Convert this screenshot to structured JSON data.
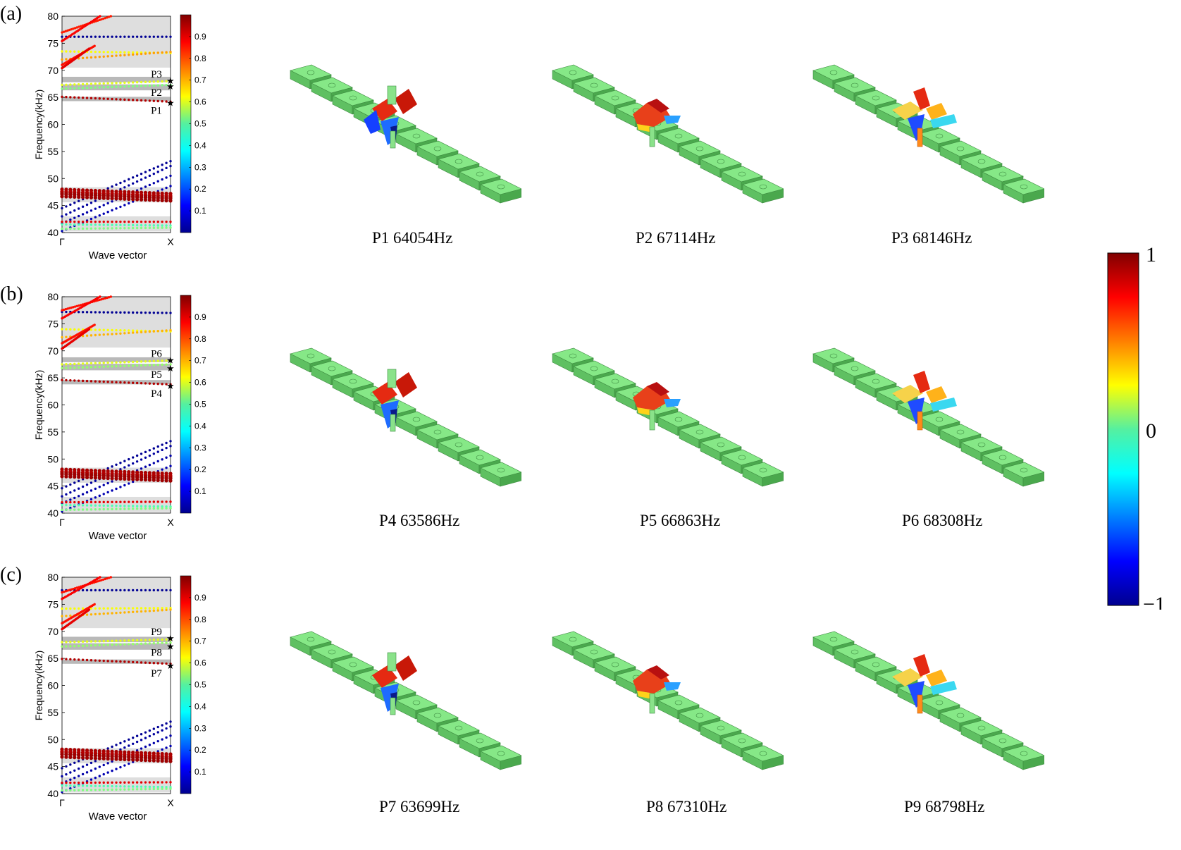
{
  "panels": [
    {
      "label": "(a)",
      "chart_data": {
        "type": "scatter",
        "ylabel": "Frequency(kHz)",
        "xlabel": "Wave vector",
        "xticklabels": [
          "Γ",
          "X"
        ],
        "ylim": [
          40,
          80
        ],
        "yticks": [
          40,
          45,
          50,
          55,
          60,
          65,
          70,
          75,
          80
        ],
        "colorbar": {
          "range": [
            0,
            1
          ],
          "ticks": [
            0.1,
            0.2,
            0.3,
            0.4,
            0.5,
            0.6,
            0.7,
            0.8,
            0.9
          ],
          "colormap": "jet"
        },
        "shaded_bands": [
          [
            45.6,
            48.4
          ],
          [
            40.2,
            43.0
          ],
          [
            64.3,
            65.1
          ],
          [
            66.3,
            67.4
          ],
          [
            67.8,
            68.8
          ],
          [
            70.5,
            80
          ]
        ],
        "series": [
          {
            "y0": 76.2,
            "y1": 76.2,
            "c": 0.02
          },
          {
            "y0": 77.0,
            "y1": 80.0,
            "c": 0.85,
            "xend": 0.45
          },
          {
            "y0": 75.4,
            "y1": 80.0,
            "c": 0.88,
            "xend": 0.35
          },
          {
            "y0": 73.5,
            "y1": 73.2,
            "c": 0.62
          },
          {
            "y0": 72.0,
            "y1": 73.4,
            "c": 0.72
          },
          {
            "y0": 71.0,
            "y1": 74.5,
            "c": 0.86,
            "xend": 0.3
          },
          {
            "y0": 70.4,
            "y1": 74.0,
            "c": 0.9,
            "xend": 0.25
          },
          {
            "y0": 67.3,
            "y1": 68.0,
            "c": 0.6
          },
          {
            "y0": 66.6,
            "y1": 67.3,
            "c": 0.5
          },
          {
            "y0": 65.1,
            "y1": 64.2,
            "c": 0.95
          },
          {
            "y0": 44.5,
            "y1": 53.2,
            "c": 0.02
          },
          {
            "y0": 43.0,
            "y1": 52.3,
            "c": 0.03
          },
          {
            "y0": 41.7,
            "y1": 50.5,
            "c": 0.04
          },
          {
            "y0": 40.3,
            "y1": 48.6,
            "c": 0.05
          },
          {
            "y0": 48.0,
            "y1": 47.2,
            "c": 0.96
          },
          {
            "y0": 47.6,
            "y1": 46.8,
            "c": 0.95
          },
          {
            "y0": 47.2,
            "y1": 46.4,
            "c": 0.97
          },
          {
            "y0": 42.0,
            "y1": 42.0,
            "c": 0.9
          },
          {
            "y0": 41.5,
            "y1": 41.3,
            "c": 0.45
          },
          {
            "y0": 40.7,
            "y1": 40.9,
            "c": 0.5
          }
        ],
        "markers": [
          {
            "label": "P1",
            "y": 64.054
          },
          {
            "label": "P2",
            "y": 67.114
          },
          {
            "label": "P3",
            "y": 68.146
          }
        ]
      },
      "modes": [
        {
          "caption": "P1 64054Hz",
          "style": 1
        },
        {
          "caption": "P2 67114Hz",
          "style": 2
        },
        {
          "caption": "P3 68146Hz",
          "style": 3
        }
      ]
    },
    {
      "label": "(b)",
      "chart_data": {
        "type": "scatter",
        "ylabel": "Frequency(kHz)",
        "xlabel": "Wave vector",
        "xticklabels": [
          "Γ",
          "X"
        ],
        "ylim": [
          40,
          80
        ],
        "yticks": [
          40,
          45,
          50,
          55,
          60,
          65,
          70,
          75,
          80
        ],
        "colorbar": {
          "range": [
            0,
            1
          ],
          "ticks": [
            0.1,
            0.2,
            0.3,
            0.4,
            0.5,
            0.6,
            0.7,
            0.8,
            0.9
          ],
          "colormap": "jet"
        },
        "shaded_bands": [
          [
            45.6,
            48.4
          ],
          [
            40.2,
            43.0
          ],
          [
            63.8,
            64.6
          ],
          [
            66.4,
            67.6
          ],
          [
            67.9,
            68.8
          ],
          [
            70.6,
            80
          ]
        ],
        "series": [
          {
            "y0": 77.2,
            "y1": 77.0,
            "c": 0.02
          },
          {
            "y0": 77.5,
            "y1": 80.0,
            "c": 0.86,
            "xend": 0.45
          },
          {
            "y0": 76.0,
            "y1": 80.0,
            "c": 0.88,
            "xend": 0.35
          },
          {
            "y0": 74.0,
            "y1": 73.6,
            "c": 0.62
          },
          {
            "y0": 72.5,
            "y1": 73.8,
            "c": 0.7
          },
          {
            "y0": 71.4,
            "y1": 74.8,
            "c": 0.86,
            "xend": 0.3
          },
          {
            "y0": 70.4,
            "y1": 74.0,
            "c": 0.9,
            "xend": 0.25
          },
          {
            "y0": 67.5,
            "y1": 68.2,
            "c": 0.6
          },
          {
            "y0": 66.8,
            "y1": 67.5,
            "c": 0.52
          },
          {
            "y0": 64.6,
            "y1": 63.8,
            "c": 0.95
          },
          {
            "y0": 44.6,
            "y1": 53.3,
            "c": 0.02
          },
          {
            "y0": 43.1,
            "y1": 52.4,
            "c": 0.03
          },
          {
            "y0": 41.8,
            "y1": 50.6,
            "c": 0.04
          },
          {
            "y0": 40.3,
            "y1": 48.7,
            "c": 0.05
          },
          {
            "y0": 48.1,
            "y1": 47.3,
            "c": 0.96
          },
          {
            "y0": 47.7,
            "y1": 46.9,
            "c": 0.95
          },
          {
            "y0": 47.3,
            "y1": 46.5,
            "c": 0.97
          },
          {
            "y0": 42.0,
            "y1": 42.1,
            "c": 0.9
          },
          {
            "y0": 41.5,
            "y1": 41.2,
            "c": 0.45
          },
          {
            "y0": 40.6,
            "y1": 40.9,
            "c": 0.5
          }
        ],
        "markers": [
          {
            "label": "P4",
            "y": 63.586
          },
          {
            "label": "P5",
            "y": 66.863
          },
          {
            "label": "P6",
            "y": 68.308
          }
        ]
      },
      "modes": [
        {
          "caption": "P4 63586Hz",
          "style": 4
        },
        {
          "caption": "P5 66863Hz",
          "style": 2
        },
        {
          "caption": "P6 68308Hz",
          "style": 3
        }
      ]
    },
    {
      "label": "(c)",
      "chart_data": {
        "type": "scatter",
        "ylabel": "Frequency(kHz)",
        "xlabel": "Wave vector",
        "xticklabels": [
          "Γ",
          "X"
        ],
        "ylim": [
          40,
          80
        ],
        "yticks": [
          40,
          45,
          50,
          55,
          60,
          65,
          70,
          75,
          80
        ],
        "colorbar": {
          "range": [
            0,
            1
          ],
          "ticks": [
            0.1,
            0.2,
            0.3,
            0.4,
            0.5,
            0.6,
            0.7,
            0.8,
            0.9
          ],
          "colormap": "jet"
        },
        "shaded_bands": [
          [
            45.6,
            48.4
          ],
          [
            40.2,
            43.0
          ],
          [
            64.0,
            64.8
          ],
          [
            66.6,
            67.8
          ],
          [
            68.0,
            69.0
          ],
          [
            70.6,
            80
          ]
        ],
        "series": [
          {
            "y0": 77.6,
            "y1": 77.6,
            "c": 0.02
          },
          {
            "y0": 77.2,
            "y1": 80.0,
            "c": 0.86,
            "xend": 0.45
          },
          {
            "y0": 76.0,
            "y1": 80.0,
            "c": 0.88,
            "xend": 0.35
          },
          {
            "y0": 74.2,
            "y1": 74.3,
            "c": 0.62
          },
          {
            "y0": 72.8,
            "y1": 74.0,
            "c": 0.7
          },
          {
            "y0": 71.5,
            "y1": 75.0,
            "c": 0.86,
            "xend": 0.3
          },
          {
            "y0": 70.4,
            "y1": 74.0,
            "c": 0.9,
            "xend": 0.25
          },
          {
            "y0": 68.0,
            "y1": 68.5,
            "c": 0.6
          },
          {
            "y0": 67.2,
            "y1": 67.9,
            "c": 0.52
          },
          {
            "y0": 64.9,
            "y1": 64.0,
            "c": 0.95
          },
          {
            "y0": 44.7,
            "y1": 53.3,
            "c": 0.02
          },
          {
            "y0": 43.2,
            "y1": 52.4,
            "c": 0.03
          },
          {
            "y0": 41.9,
            "y1": 50.7,
            "c": 0.04
          },
          {
            "y0": 40.3,
            "y1": 48.8,
            "c": 0.05
          },
          {
            "y0": 48.2,
            "y1": 47.3,
            "c": 0.96
          },
          {
            "y0": 47.8,
            "y1": 46.9,
            "c": 0.95
          },
          {
            "y0": 47.3,
            "y1": 46.5,
            "c": 0.97
          },
          {
            "y0": 42.0,
            "y1": 42.1,
            "c": 0.9
          },
          {
            "y0": 41.5,
            "y1": 41.2,
            "c": 0.45
          },
          {
            "y0": 40.6,
            "y1": 40.9,
            "c": 0.5
          }
        ],
        "markers": [
          {
            "label": "P7",
            "y": 63.699
          },
          {
            "label": "P8",
            "y": 67.31
          },
          {
            "label": "P9",
            "y": 68.798
          }
        ]
      },
      "modes": [
        {
          "caption": "P7 63699Hz",
          "style": 4
        },
        {
          "caption": "P8 67310Hz",
          "style": 2
        },
        {
          "caption": "P9 68798Hz",
          "style": 3
        }
      ]
    }
  ],
  "global_colorbar": {
    "max_label": "1",
    "mid_label": "0",
    "min_label": "−1"
  }
}
